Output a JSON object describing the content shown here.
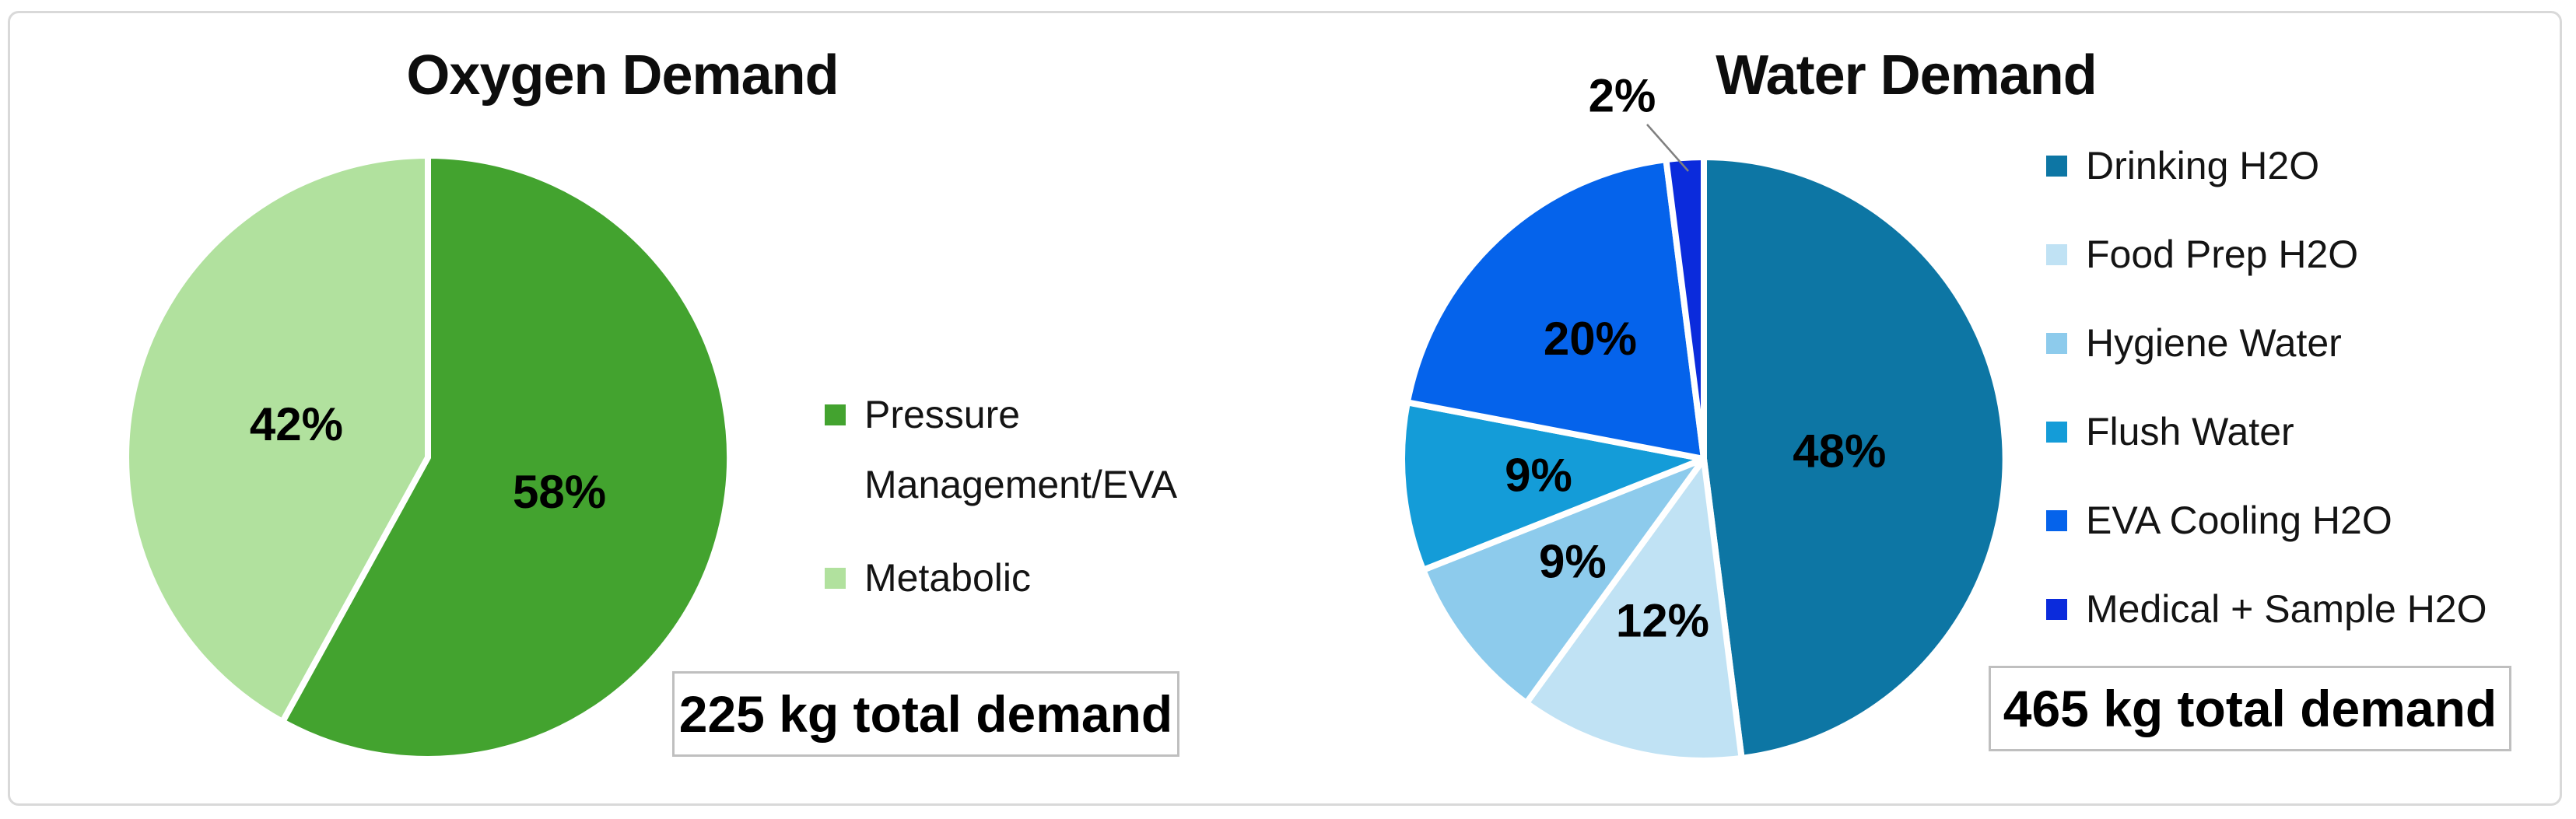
{
  "figure": {
    "background": "#FFFFFF",
    "border_color": "#D9D9D9",
    "annotation_box_border": "#BFBFBF",
    "leader_line_color": "#808080",
    "label_color": "#000000"
  },
  "chart_data": [
    {
      "type": "pie",
      "title": "Oxygen Demand",
      "categories": [
        "Pressure Management/EVA",
        "Metabolic"
      ],
      "values": [
        58,
        42
      ],
      "labels": [
        "58%",
        "42%"
      ],
      "colors": [
        "#43A32F",
        "#B1E19E"
      ],
      "unit": "percent",
      "start_angle_deg": 0,
      "direction": "clockwise",
      "legend_position": "right",
      "annotation": "225 kg total demand"
    },
    {
      "type": "pie",
      "title": "Water Demand",
      "categories": [
        "Drinking H2O",
        "Food Prep H2O",
        "Hygiene Water",
        "Flush Water",
        "EVA Cooling H2O",
        "Medical + Sample H2O"
      ],
      "values": [
        48,
        12,
        9,
        9,
        20,
        2
      ],
      "labels": [
        "48%",
        "12%",
        "9%",
        "9%",
        "20%",
        "2%"
      ],
      "colors": [
        "#0D76A4",
        "#C0E2F4",
        "#8DCBEC",
        "#149CD8",
        "#0563EB",
        "#0B2BDC"
      ],
      "unit": "percent",
      "start_angle_deg": 0,
      "direction": "clockwise",
      "legend_position": "right",
      "annotation": "465 kg total demand"
    }
  ]
}
